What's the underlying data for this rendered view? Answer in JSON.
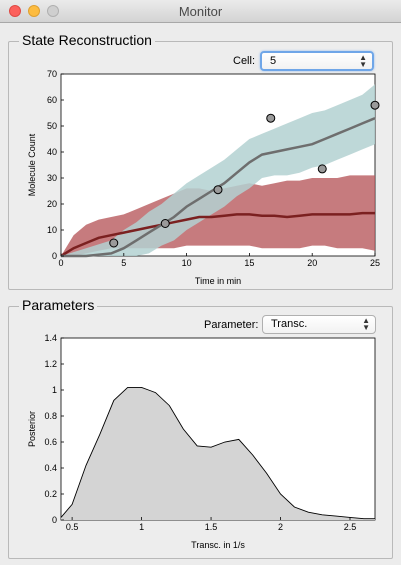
{
  "window": {
    "title": "Monitor"
  },
  "state_panel": {
    "title": "State Reconstruction",
    "cell_label": "Cell:",
    "cell_value": "5"
  },
  "params_panel": {
    "title": "Parameters",
    "parameter_label": "Parameter:",
    "parameter_value": "Transc."
  },
  "chart_data": [
    {
      "type": "line",
      "xlabel": "Time in min",
      "ylabel": "Molecule Count",
      "xlim": [
        0,
        25
      ],
      "ylim": [
        0,
        70
      ],
      "xticks": [
        0,
        5,
        10,
        15,
        20,
        25
      ],
      "yticks": [
        0,
        10,
        20,
        30,
        40,
        50,
        60,
        70
      ],
      "colors": {
        "teal_band": "#b3d1d1",
        "red_band": "#b85a5e",
        "teal_line": "#6e6e6e",
        "red_line": "#7b2020"
      },
      "series": [
        {
          "kind": "band_line",
          "x": [
            0,
            2,
            4,
            5,
            6,
            7,
            8,
            9,
            10,
            11,
            12,
            13,
            14,
            15,
            16,
            17,
            18,
            19,
            20,
            21,
            22,
            23,
            24,
            25
          ],
          "mean": [
            0,
            0,
            1,
            3,
            6,
            9,
            12,
            15,
            19,
            22,
            25,
            28,
            32,
            36,
            39,
            40,
            41,
            42,
            43,
            45,
            47,
            49,
            51,
            53
          ],
          "lower": [
            0,
            0,
            0,
            0,
            0,
            1,
            4,
            6,
            10,
            13,
            16,
            19,
            23,
            26,
            30,
            31,
            31,
            32,
            34,
            35,
            37,
            39,
            41,
            43
          ],
          "upper": [
            0,
            3,
            6,
            10,
            13,
            17,
            20,
            24,
            28,
            31,
            34,
            37,
            41,
            45,
            47,
            49,
            51,
            53,
            55,
            56,
            58,
            60,
            62,
            66
          ]
        },
        {
          "kind": "band_line",
          "x": [
            0,
            1,
            2,
            3,
            4,
            5,
            6,
            7,
            8,
            9,
            10,
            11,
            12,
            13,
            14,
            15,
            16,
            17,
            18,
            19,
            20,
            21,
            22,
            23,
            24,
            25
          ],
          "mean": [
            0,
            3,
            5,
            7,
            8,
            9,
            10,
            11,
            12,
            13,
            14,
            15,
            15,
            15.5,
            16,
            16,
            15.5,
            15.5,
            15,
            15.5,
            16,
            16,
            16,
            16,
            16.5,
            16.5
          ],
          "lower": [
            0,
            0,
            1,
            2,
            3,
            3,
            3,
            3,
            3,
            3,
            4,
            4,
            4,
            4,
            4,
            4,
            3,
            3,
            3,
            3,
            4,
            4,
            3,
            3,
            3,
            2
          ],
          "upper": [
            0,
            8,
            12,
            14,
            15,
            16,
            18,
            20,
            22,
            24,
            26,
            26,
            25,
            26,
            27,
            28,
            27,
            28,
            29,
            29,
            30,
            30,
            30,
            31,
            31,
            31
          ]
        }
      ],
      "points": [
        {
          "x": 4.2,
          "y": 5
        },
        {
          "x": 8.3,
          "y": 12.5
        },
        {
          "x": 12.5,
          "y": 25.5
        },
        {
          "x": 16.7,
          "y": 53
        },
        {
          "x": 20.8,
          "y": 33.5
        },
        {
          "x": 25,
          "y": 58
        }
      ]
    },
    {
      "type": "area",
      "xlabel": "Transc. in 1/s",
      "ylabel": "Posterior",
      "xlim": [
        0.42,
        2.68
      ],
      "ylim": [
        0,
        1.4
      ],
      "xticks": [
        0.5,
        1,
        1.5,
        2,
        2.5
      ],
      "yticks": [
        0,
        0.2,
        0.4,
        0.6,
        0.8,
        1,
        1.2,
        1.4
      ],
      "colors": {
        "fill": "#d4d4d4",
        "line": "#000000"
      },
      "x": [
        0.42,
        0.5,
        0.6,
        0.7,
        0.8,
        0.9,
        1.0,
        1.05,
        1.1,
        1.2,
        1.3,
        1.4,
        1.5,
        1.6,
        1.7,
        1.8,
        1.9,
        2.0,
        2.1,
        2.2,
        2.3,
        2.4,
        2.5,
        2.6,
        2.68
      ],
      "y": [
        0.02,
        0.12,
        0.42,
        0.66,
        0.92,
        1.02,
        1.02,
        1.0,
        0.98,
        0.88,
        0.7,
        0.57,
        0.56,
        0.6,
        0.62,
        0.5,
        0.36,
        0.2,
        0.1,
        0.06,
        0.04,
        0.03,
        0.02,
        0.01,
        0.01
      ]
    }
  ]
}
